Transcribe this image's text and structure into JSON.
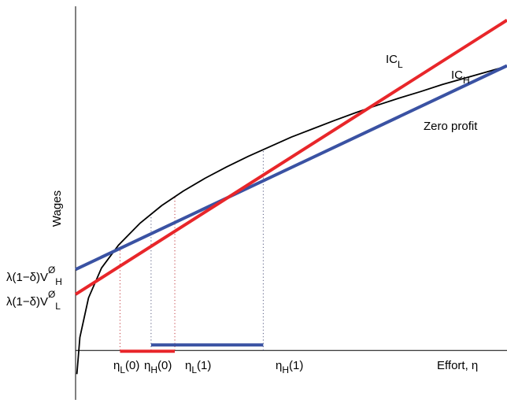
{
  "chart_data": {
    "type": "line",
    "title": "",
    "xlabel": "Effort, η",
    "ylabel": "Wages",
    "xlim": [
      0,
      10
    ],
    "ylim": [
      -1.2,
      8
    ],
    "grid": false,
    "legend": "none",
    "intercepts": {
      "H": {
        "label": "λ(1−δ)V",
        "sub": "H",
        "sup": "Ø",
        "value": 1.55
      },
      "L": {
        "label": "λ(1−δ)V",
        "sub": "L",
        "sup": "Ø",
        "value": 1.1
      }
    },
    "series": [
      {
        "name": "Zero profit",
        "color": "#000000",
        "x": [
          0.03,
          0.1,
          0.3,
          0.6,
          1.0,
          1.5,
          2.0,
          2.5,
          3.0,
          3.5,
          4.0,
          4.5,
          5.0,
          5.5,
          6.0,
          6.5,
          7.0,
          7.5,
          8.0,
          8.5,
          9.0,
          9.5,
          10.0
        ],
        "y": [
          -0.54,
          0.3,
          1.2,
          1.88,
          2.41,
          2.91,
          3.31,
          3.64,
          3.93,
          4.19,
          4.43,
          4.65,
          4.87,
          5.06,
          5.25,
          5.43,
          5.6,
          5.76,
          5.91,
          6.07,
          6.21,
          6.35,
          6.49
        ]
      },
      {
        "name": "IC",
        "sub": "H",
        "color": "#3a52a3",
        "x": [
          0,
          10
        ],
        "y": [
          1.85,
          6.5
        ]
      },
      {
        "name": "IC",
        "sub": "L",
        "color": "#e8262a",
        "x": [
          0,
          10
        ],
        "y": [
          1.28,
          7.54
        ]
      }
    ],
    "segments": [
      {
        "name": "L",
        "color": "#e8262a",
        "x": [
          1.03,
          2.3
        ]
      },
      {
        "name": "H",
        "color": "#3a52a3",
        "x": [
          1.75,
          4.35
        ]
      }
    ],
    "markers": [
      {
        "label": "η",
        "sub": "L",
        "arg": "(0)",
        "x": 1.03
      },
      {
        "label": "η",
        "sub": "H",
        "arg": "(0)",
        "x": 1.75
      },
      {
        "label": "η",
        "sub": "L",
        "arg": "(1)",
        "x": 2.3
      },
      {
        "label": "η",
        "sub": "H",
        "arg": "(1)",
        "x": 4.35
      }
    ]
  }
}
